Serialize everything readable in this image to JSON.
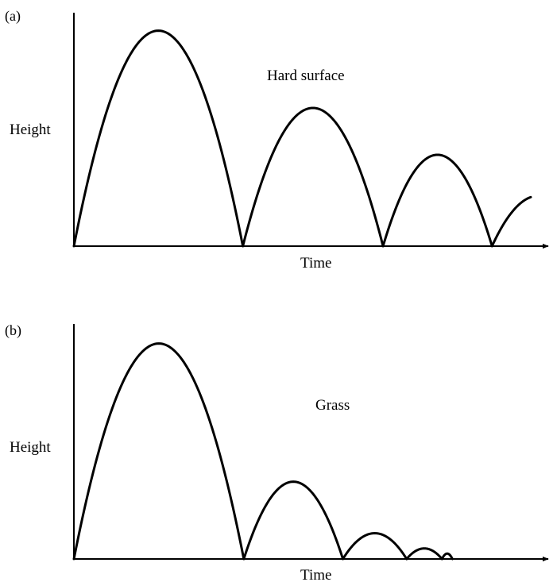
{
  "chart_data": [
    {
      "type": "line",
      "panel_label": "(a)",
      "annotation": "Hard surface",
      "xlabel": "Time",
      "ylabel": "Height",
      "xlim": [
        0,
        100
      ],
      "ylim": [
        0,
        100
      ],
      "grid": false,
      "series": [
        {
          "bounces": [
            {
              "start": 0,
              "end": 35.8,
              "peak": 92
            },
            {
              "start": 35.8,
              "end": 65.5,
              "peak": 59
            },
            {
              "start": 65.5,
              "end": 88.6,
              "peak": 39
            },
            {
              "start": 88.6,
              "end": 108.2,
              "peak": 21.5,
              "cutoff": 96.8
            }
          ]
        }
      ]
    },
    {
      "type": "line",
      "panel_label": "(b)",
      "annotation": "Grass",
      "xlabel": "Time",
      "ylabel": "Height",
      "xlim": [
        0,
        100
      ],
      "ylim": [
        0,
        100
      ],
      "grid": false,
      "series": [
        {
          "bounces": [
            {
              "start": 0,
              "end": 36.0,
              "peak": 92
            },
            {
              "start": 36.0,
              "end": 57.0,
              "peak": 33
            },
            {
              "start": 57.0,
              "end": 70.5,
              "peak": 11
            },
            {
              "start": 70.5,
              "end": 78.0,
              "peak": 4.5
            },
            {
              "start": 78.0,
              "end": 80.2,
              "peak": 2.3
            }
          ]
        }
      ]
    }
  ]
}
